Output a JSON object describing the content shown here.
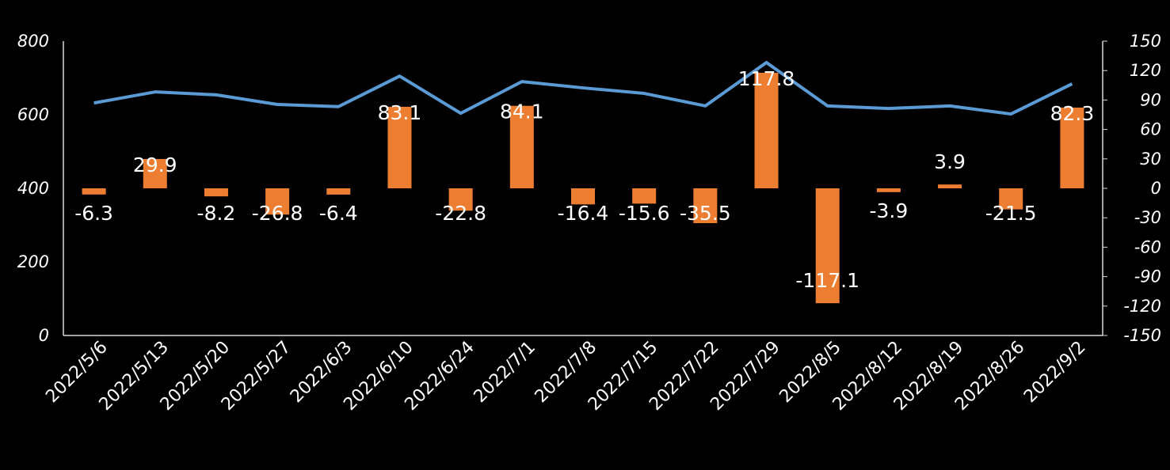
{
  "chart_data": {
    "type": "bar+line",
    "title": "",
    "categories": [
      "2022/5/6",
      "2022/5/13",
      "2022/5/20",
      "2022/5/27",
      "2022/6/3",
      "2022/6/10",
      "2022/6/24",
      "2022/7/1",
      "2022/7/8",
      "2022/7/15",
      "2022/7/22",
      "2022/7/29",
      "2022/8/5",
      "2022/8/12",
      "2022/8/19",
      "2022/8/26",
      "2022/9/2"
    ],
    "series": [
      {
        "name": "line (left axis)",
        "type": "line",
        "axis": "left",
        "color": "#5b9bd5",
        "values": [
          632,
          662,
          654,
          628,
          622,
          705,
          604,
          690,
          673,
          658,
          624,
          742,
          624,
          617,
          624,
          602,
          684
        ]
      },
      {
        "name": "bar (right axis)",
        "type": "bar",
        "axis": "right",
        "color": "#ed7d31",
        "values": [
          -6.3,
          29.9,
          -8.2,
          -26.8,
          -6.4,
          83.1,
          -22.8,
          84.1,
          -16.4,
          -15.6,
          -35.5,
          117.8,
          -117.1,
          -3.9,
          3.9,
          -21.5,
          82.3
        ],
        "labels": [
          "-6.3",
          "29.9",
          "-8.2",
          "-26.8",
          "-6.4",
          "83.1",
          "-22.8",
          "84.1",
          "-16.4",
          "-15.6",
          "-35.5",
          "117.8",
          "-117.1",
          "-3.9",
          "3.9",
          "-21.5",
          "82.3"
        ]
      }
    ],
    "left_axis": {
      "range": [
        0,
        800
      ],
      "ticks": [
        "0",
        "200",
        "400",
        "600",
        "800"
      ]
    },
    "right_axis": {
      "range": [
        -150,
        150
      ],
      "ticks": [
        "-150",
        "-120",
        "-90",
        "-60",
        "-30",
        "0",
        "30",
        "60",
        "90",
        "120",
        "150"
      ]
    },
    "grid": false,
    "legend": "none"
  }
}
